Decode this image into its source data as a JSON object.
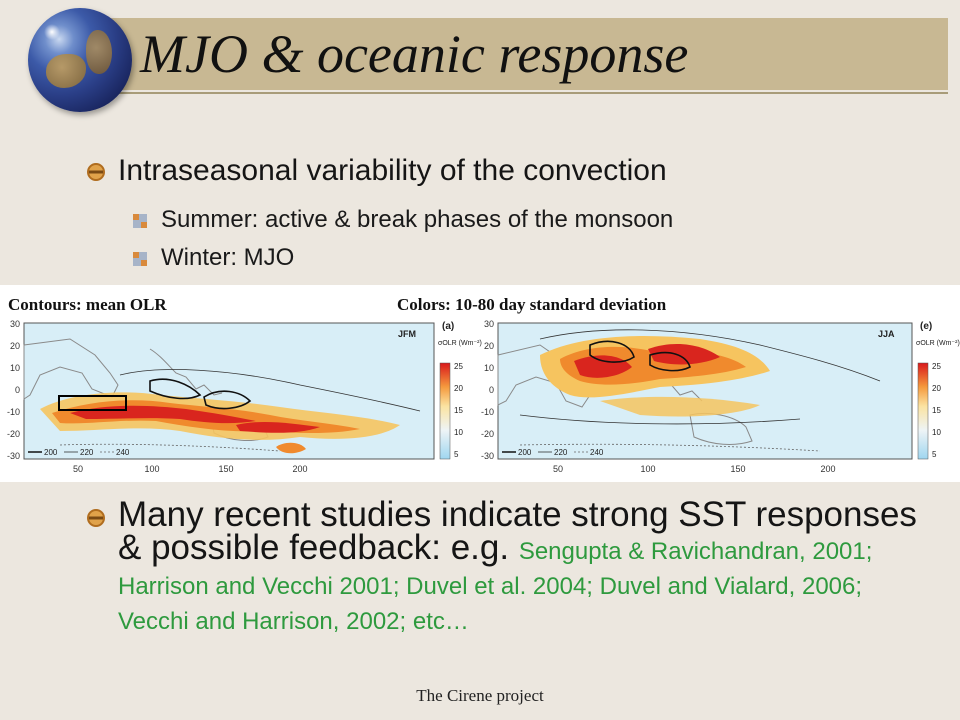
{
  "title": "MJO & oceanic response",
  "bullets": [
    {
      "text": "Intraseasonal variability of the convection",
      "sub": [
        "Summer: active & break phases of the monsoon",
        "Winter: MJO"
      ]
    }
  ],
  "figure": {
    "caption_left": "Contours: mean OLR",
    "caption_right": "Colors: 10-80 day standard deviation",
    "panels": [
      {
        "tag": "(a)",
        "season": "JFM",
        "colorbar_title": "σOLR (Wm⁻²)",
        "colorbar_ticks": [
          "25",
          "20",
          "15",
          "10",
          "5"
        ],
        "x_ticks": [
          "50",
          "100",
          "150",
          "200"
        ],
        "y_ticks": [
          "30",
          "20",
          "10",
          "0",
          "-10",
          "-20",
          "-30"
        ],
        "contour_legend": [
          "200",
          "220",
          "240"
        ]
      },
      {
        "tag": "(e)",
        "season": "JJA",
        "colorbar_title": "σOLR (Wm⁻²)",
        "colorbar_ticks": [
          "25",
          "20",
          "15",
          "10",
          "5"
        ],
        "x_ticks": [
          "50",
          "100",
          "150",
          "200"
        ],
        "y_ticks": [
          "30",
          "20",
          "10",
          "0",
          "-10",
          "-20",
          "-30"
        ],
        "contour_legend": [
          "200",
          "220",
          "240"
        ]
      }
    ]
  },
  "bottom": {
    "main": "Many recent studies indicate strong SST responses & possible feedback: e.g. ",
    "citations": "Sengupta & Ravichandran, 2001; Harrison and Vecchi 2001; Duvel et al. 2004; Duvel and Vialard, 2006; Vecchi and Harrison, 2002; etc…"
  },
  "footer": "The Cirene project",
  "colors": {
    "title_bar": "#c8b893",
    "bullet": "#c8862f",
    "citation": "#2e9a3e",
    "background": "#ece7df"
  }
}
